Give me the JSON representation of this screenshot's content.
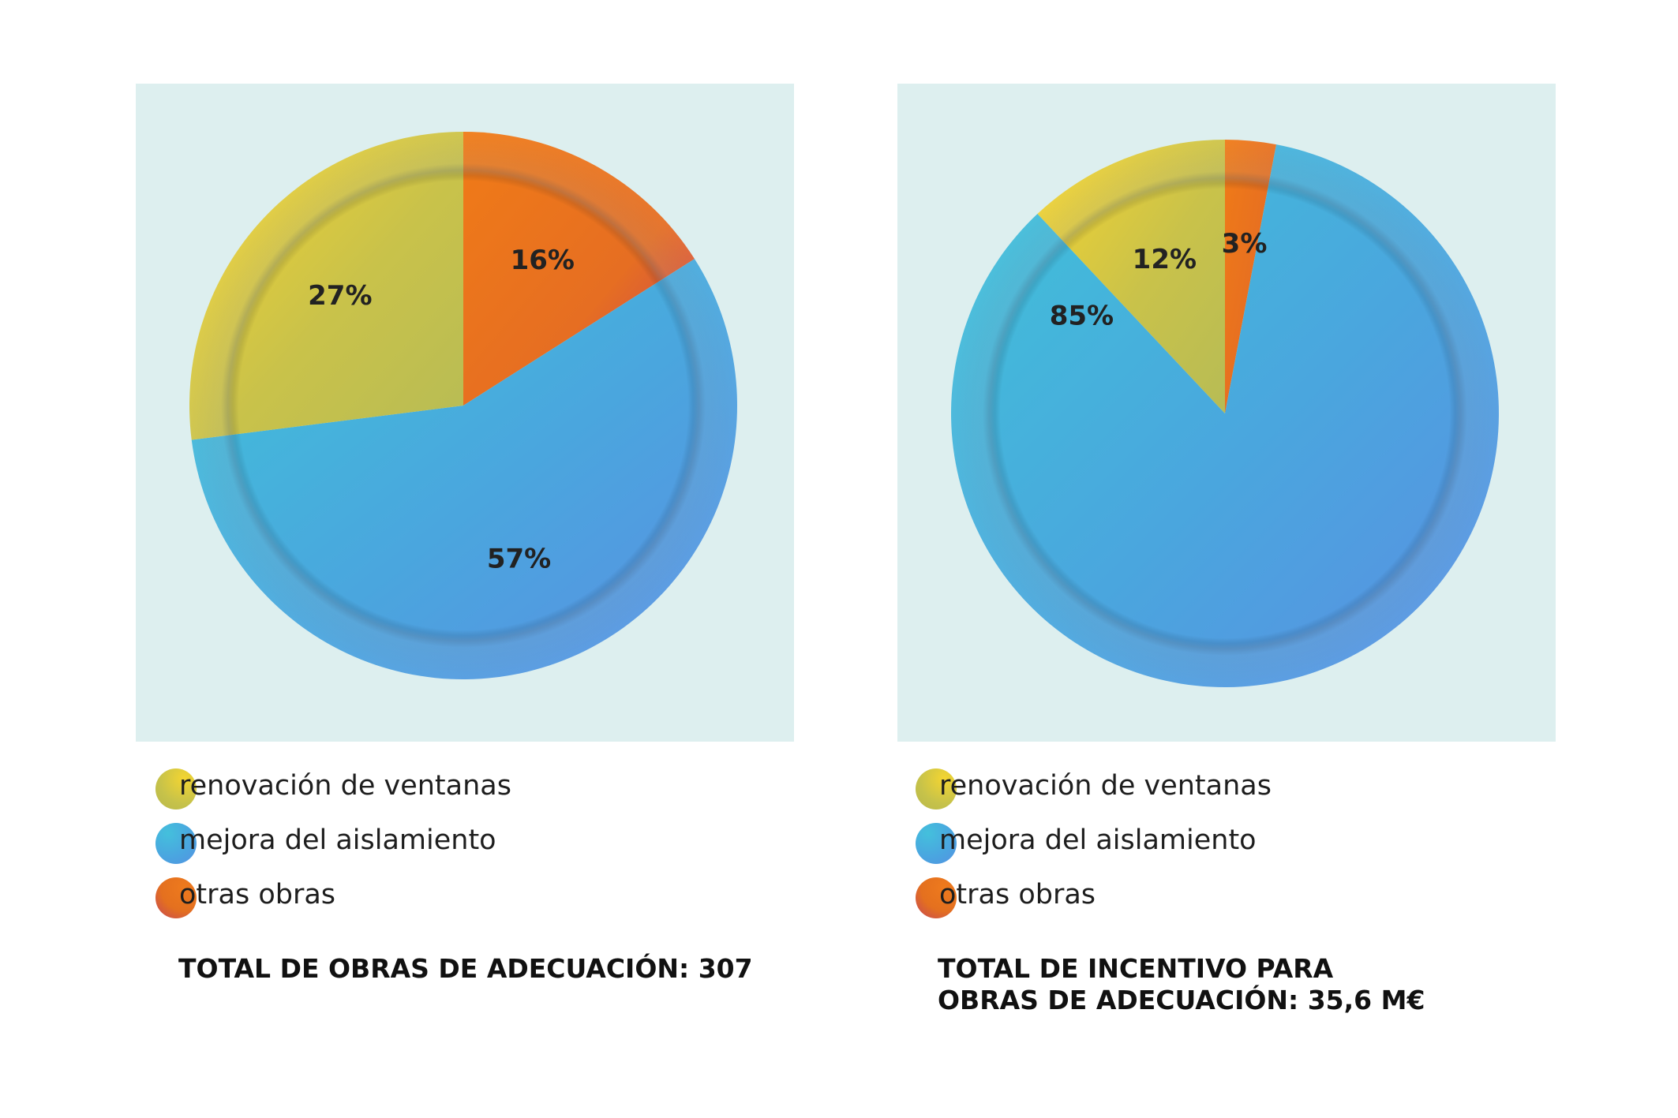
{
  "chart_data": [
    {
      "type": "pie",
      "title": "TOTAL DE OBRAS DE ADECUACIÓN: 307",
      "categories": [
        "renovación de ventanas",
        "mejora del aislamiento",
        "otras obras"
      ],
      "values": [
        27,
        57,
        16
      ],
      "labels": [
        "27%",
        "57%",
        "16%"
      ],
      "colors": [
        "#d4c83e",
        "#4ca9dd",
        "#ea7622"
      ]
    },
    {
      "type": "pie",
      "title": "TOTAL DE INCENTIVO PARA OBRAS DE ADECUACIÓN: 35,6 M€",
      "categories": [
        "renovación de ventanas",
        "mejora del aislamiento",
        "otras obras"
      ],
      "values": [
        12,
        85,
        3
      ],
      "labels": [
        "12%",
        "85%",
        "3%"
      ],
      "colors": [
        "#d4c83e",
        "#4ca9dd",
        "#ea7622"
      ]
    }
  ],
  "legend": {
    "items": [
      {
        "label": "renovación de ventanas",
        "color": "#c9c345"
      },
      {
        "label": "mejora del aislamiento",
        "color": "#4aa4e0"
      },
      {
        "label": "otras obras",
        "color": "#e4701f"
      }
    ]
  },
  "totals": {
    "left": "TOTAL DE OBRAS DE ADECUACIÓN: 307",
    "right_line1": "TOTAL DE INCENTIVO PARA",
    "right_line2": "OBRAS DE ADECUACIÓN: 35,6 M€"
  }
}
